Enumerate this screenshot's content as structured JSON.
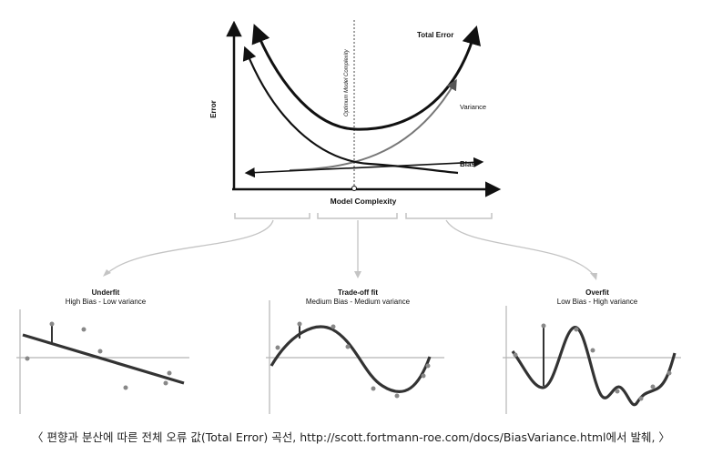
{
  "main_chart": {
    "y_label": "Error",
    "x_label": "Model Complexity",
    "optimum_label": "Optimum Model Complexity",
    "curve_labels": {
      "total_error": "Total Error",
      "variance": "Variance",
      "bias": "Bias"
    }
  },
  "panels": [
    {
      "title": "Underfit",
      "subtitle": "High Bias - Low variance"
    },
    {
      "title": "Trade-off fit",
      "subtitle": "Medium Bias - Medium variance"
    },
    {
      "title": "Overfit",
      "subtitle": "Low Bias - High variance"
    }
  ],
  "caption": "〈 편향과 분산에 따른 전체 오류 값(Total Error) 곡선, http://scott.fortmann-roe.com/docs/BiasVariance.html에서 발췌, 〉",
  "colors": {
    "ink": "#111111",
    "axis_gray": "#b5b5b5",
    "connector_gray": "#bdbdbd"
  }
}
